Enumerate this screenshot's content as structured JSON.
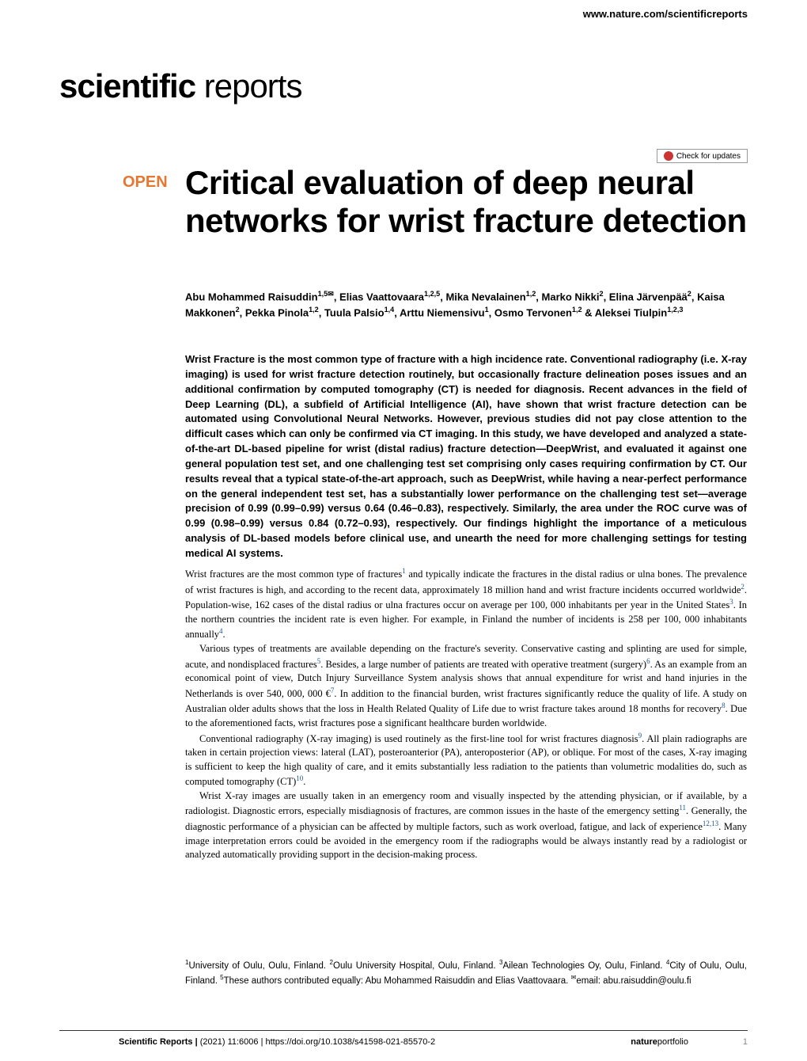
{
  "header": {
    "url": "www.nature.com/scientificreports"
  },
  "logo": {
    "scientific": "scientific",
    "reports": " reports"
  },
  "checkUpdates": "Check for updates",
  "openBadge": "OPEN",
  "title": "Critical evaluation of deep neural networks for wrist fracture detection",
  "authors": "Abu Mohammed Raisuddin<sup>1,5✉</sup>, Elias Vaattovaara<sup>1,2,5</sup>, Mika Nevalainen<sup>1,2</sup>, Marko Nikki<sup>2</sup>, Elina Järvenpää<sup>2</sup>, Kaisa Makkonen<sup>2</sup>, Pekka Pinola<sup>1,2</sup>, Tuula Palsio<sup>1,4</sup>, Arttu Niemensivu<sup>1</sup>, Osmo Tervonen<sup>1,2</sup> & Aleksei Tiulpin<sup>1,2,3</sup>",
  "abstract": "Wrist Fracture is the most common type of fracture with a high incidence rate. Conventional radiography (i.e. X-ray imaging) is used for wrist fracture detection routinely, but occasionally fracture delineation poses issues and an additional confirmation by computed tomography (CT) is needed for diagnosis. Recent advances in the field of Deep Learning (DL), a subfield of Artificial Intelligence (AI), have shown that wrist fracture detection can be automated using Convolutional Neural Networks. However, previous studies did not pay close attention to the difficult cases which can only be confirmed via CT imaging. In this study, we have developed and analyzed a state-of-the-art DL-based pipeline for wrist (distal radius) fracture detection—DeepWrist, and evaluated it against one general population test set, and one challenging test set comprising only cases requiring confirmation by CT. Our results reveal that a typical state-of-the-art approach, such as DeepWrist, while having a near-perfect performance on the general independent test set, has a substantially lower performance on the challenging test set—average precision of 0.99 (0.99–0.99) versus 0.64 (0.46–0.83), respectively. Similarly, the area under the ROC curve was of 0.99 (0.98–0.99) versus 0.84 (0.72–0.93), respectively. Our findings highlight the importance of a meticulous analysis of DL-based models before clinical use, and unearth the need for more challenging settings for testing medical AI systems.",
  "paragraphs": {
    "p1": "Wrist fractures are the most common type of fractures<span class='ref-link'>1</span> and typically indicate the fractures in the distal radius or ulna bones. The prevalence of wrist fractures is high, and according to the recent data, approximately 18 million hand and wrist fracture incidents occurred worldwide<span class='ref-link'>2</span>. Population-wise, 162 cases of the distal radius or ulna fractures occur on average per 100, 000 inhabitants per year in the United States<span class='ref-link'>3</span>. In the northern countries the incident rate is even higher. For example, in Finland the number of incidents is 258 per 100, 000 inhabitants annually<span class='ref-link'>4</span>.",
    "p2": "Various types of treatments are available depending on the fracture's severity. Conservative casting and splinting are used for simple, acute, and nondisplaced fractures<span class='ref-link'>5</span>. Besides, a large number of patients are treated with operative treatment (surgery)<span class='ref-link'>6</span>. As an example from an economical point of view, Dutch Injury Surveillance System analysis shows that annual expenditure for wrist and hand injuries in the Netherlands is over 540, 000, 000 €<span class='ref-link'>7</span>. In addition to the financial burden, wrist fractures significantly reduce the quality of life. A study on Australian older adults shows that the loss in Health Related Quality of Life due to wrist fracture takes around 18 months for recovery<span class='ref-link'>8</span>. Due to the aforementioned facts, wrist fractures pose a significant healthcare burden worldwide.",
    "p3": "Conventional radiography (X-ray imaging) is used routinely as the first-line tool for wrist fractures diagnosis<span class='ref-link'>9</span>. All plain radiographs are taken in certain projection views: lateral (LAT), posteroanterior (PA), anteroposterior (AP), or oblique. For most of the cases, X-ray imaging is sufficient to keep the high quality of care, and it emits substantially less radiation to the patients than volumetric modalities do, such as computed tomography (CT)<span class='ref-link'>10</span>.",
    "p4": "Wrist X-ray images are usually taken in an emergency room and visually inspected by the attending physician, or if available, by a radiologist. Diagnostic errors, especially misdiagnosis of fractures, are common issues in the haste of the emergency setting<span class='ref-link'>11</span>. Generally, the diagnostic performance of a physician can be affected by multiple factors, such as work overload, fatigue, and lack of experience<span class='ref-link'>12,13</span>. Many image interpretation errors could be avoided in the emergency room if the radiographs would be always instantly read by a radiologist or analyzed automatically providing support in the decision-making process."
  },
  "affiliations": "<sup>1</sup>University of Oulu, Oulu, Finland. <sup>2</sup>Oulu University Hospital, Oulu, Finland. <sup>3</sup>Ailean Technologies Oy, Oulu, Finland. <sup>4</sup>City of Oulu, Oulu, Finland. <sup>5</sup>These authors contributed equally: Abu Mohammed Raisuddin and Elias Vaattovaara. <sup>✉</sup>email: abu.raisuddin@oulu.fi",
  "footer": {
    "journal": "Scientific Reports |",
    "citation": "(2021) 11:6006",
    "doi": "| https://doi.org/10.1038/s41598-021-85570-2",
    "publisher": "nature",
    "portfolio": "portfolio",
    "pageNum": "1"
  },
  "colors": {
    "openBadge": "#e67733",
    "refLink": "#1a5490",
    "checkIcon": "#cc3333",
    "pageNum": "#888888"
  },
  "typography": {
    "titleSize": 42,
    "logoSize": 42,
    "authorsSize": 13,
    "abstractSize": 13,
    "bodySize": 12.5,
    "affiliationsSize": 11.5,
    "footerSize": 11
  }
}
